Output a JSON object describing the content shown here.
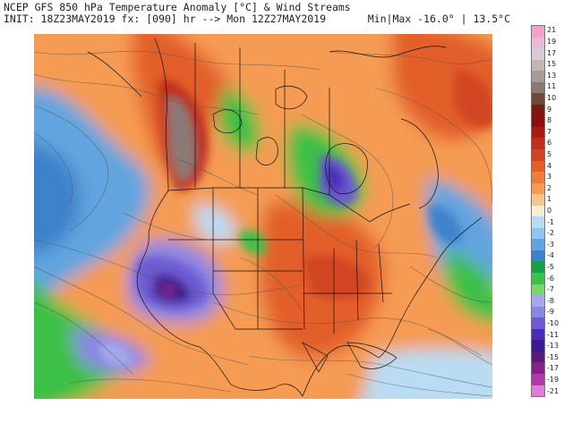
{
  "header": {
    "title_line": "NCEP GFS 850 hPa Temperature Anomaly [°C] & Wind Streams",
    "init_line": "INIT: 18Z23MAY2019 fx: [090] hr --> Mon 12Z27MAY2019",
    "minmax_line": "Min|Max -16.0° | 13.5°C"
  },
  "colorbar": {
    "labels": [
      "21",
      "19",
      "17",
      "15",
      "13",
      "11",
      "10",
      "9",
      "8",
      "7",
      "6",
      "5",
      "4",
      "3",
      "2",
      "1",
      "0",
      "-1",
      "-2",
      "-3",
      "-4",
      "-5",
      "-6",
      "-7",
      "-8",
      "-9",
      "-10",
      "-11",
      "-13",
      "-15",
      "-17",
      "-19",
      "-21"
    ],
    "colors": [
      "#f7a1c9",
      "#e8bcd7",
      "#d8c9d2",
      "#c4b4b4",
      "#a89a96",
      "#8a7a76",
      "#6b4b3a",
      "#7a1a12",
      "#8b0f0f",
      "#a61c14",
      "#be2e1a",
      "#d14422",
      "#e35f2a",
      "#ef7c3a",
      "#f59b52",
      "#f9c58e",
      "#f7efd0",
      "#b9dcf3",
      "#8fc5ee",
      "#62a4df",
      "#3c82ca",
      "#14a04a",
      "#3cc046",
      "#7ad66a",
      "#a4a8ee",
      "#8a86e4",
      "#6e5ad2",
      "#4b2cb8",
      "#3a1a8e",
      "#5a1a78",
      "#84208c",
      "#b03aa8",
      "#e27ad8"
    ]
  },
  "map_icons": {
    "basemap": "north-america-map",
    "streamlines": "wind-streamlines"
  }
}
